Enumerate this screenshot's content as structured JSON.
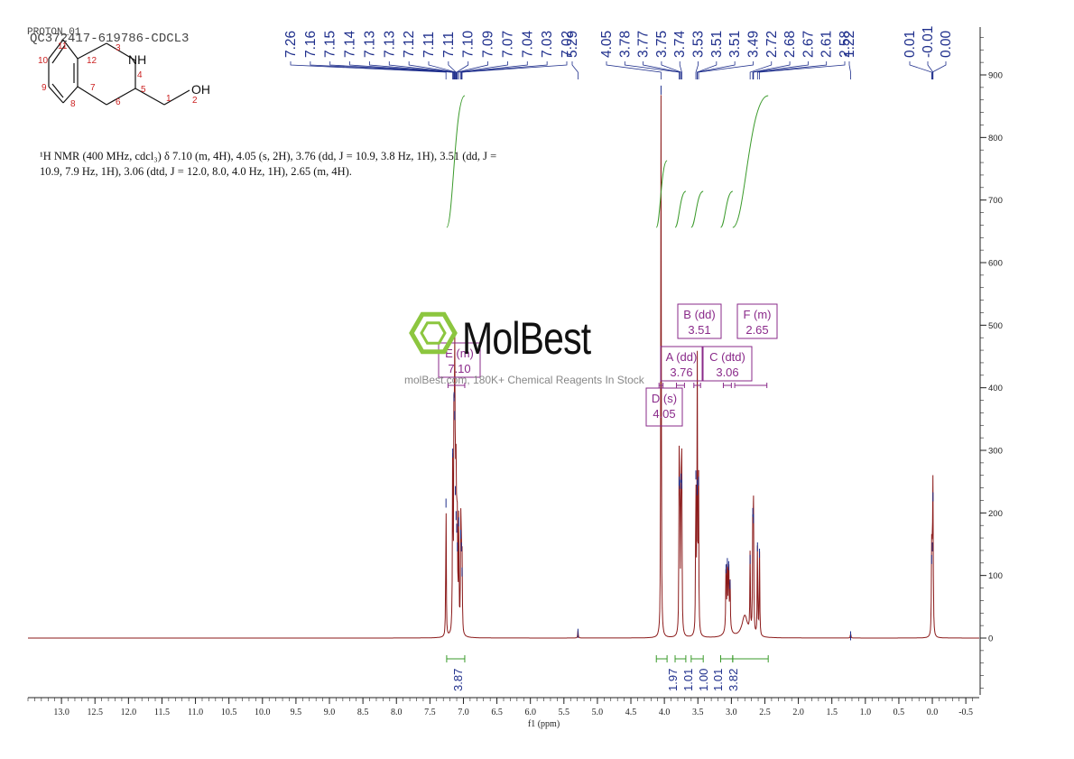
{
  "header": {
    "experiment": "PROTON_01",
    "sample": "QC372417-619786-CDCL3"
  },
  "description": {
    "line1": "¹H NMR (400 MHz, cdcl₃) δ 7.10 (m, 4H), 4.05 (s, 2H), 3.76 (dd, J = 10.9, 3.8 Hz, 1H), 3.51 (dd, J =",
    "line2": "10.9, 7.9 Hz, 1H), 3.06 (dtd, J = 12.0, 8.0, 4.0 Hz, 1H), 2.65 (m, 4H)."
  },
  "watermark": {
    "name": "MolBest",
    "tagline": "molBest.com, 180K+ Chemical Reagents In Stock"
  },
  "structure": {
    "labels": [
      "NH",
      "OH",
      "1",
      "2",
      "3",
      "4",
      "5",
      "6",
      "7",
      "8",
      "9",
      "10",
      "11",
      "12"
    ]
  },
  "colors": {
    "spectrum": "#8b1a1a",
    "peak_labels": "#1f2f8c",
    "integral": "#3a9a2a",
    "multiplet": "#8a2a8a",
    "axis": "#222222"
  },
  "chart_data": {
    "type": "line",
    "title": "",
    "xlabel": "f1 (ppm)",
    "ylabel": "",
    "x_reversed": true,
    "xlim": [
      13.5,
      -0.7
    ],
    "ylim": [
      -90,
      980
    ],
    "x_ticks": [
      13.0,
      12.5,
      12.0,
      11.5,
      11.0,
      10.5,
      10.0,
      9.5,
      9.0,
      8.5,
      8.0,
      7.5,
      7.0,
      6.5,
      6.0,
      5.5,
      5.0,
      4.5,
      4.0,
      3.5,
      3.0,
      2.5,
      2.0,
      1.5,
      1.0,
      0.5,
      0.0,
      -0.5
    ],
    "x_tick_labels": [
      "13.0",
      "12.5",
      "12.0",
      "11.5",
      "11.0",
      "10.5",
      "10.0",
      "9.5",
      "9.0",
      "8.5",
      "8.0",
      "7.5",
      "7.0",
      "6.5",
      "6.0",
      "5.5",
      "5.0",
      "4.5",
      "4.0",
      "3.5",
      "3.0",
      "2.5",
      "2.0",
      "1.5",
      "1.0",
      "0.5",
      "0.0",
      "-0.5"
    ],
    "y_ticks": [
      900,
      800,
      700,
      600,
      500,
      400,
      300,
      200,
      100,
      0
    ],
    "y_tick_labels": [
      "900",
      "800",
      "700",
      "600",
      "500",
      "400",
      "300",
      "200",
      "100",
      "0"
    ],
    "peaks": [
      {
        "ppm": 7.26,
        "height": 220
      },
      {
        "ppm": 7.16,
        "height": 300
      },
      {
        "ppm": 7.14,
        "height": 390
      },
      {
        "ppm": 7.13,
        "height": 360
      },
      {
        "ppm": 7.12,
        "height": 240
      },
      {
        "ppm": 7.11,
        "height": 200
      },
      {
        "ppm": 7.1,
        "height": 180
      },
      {
        "ppm": 7.09,
        "height": 150
      },
      {
        "ppm": 7.07,
        "height": 190
      },
      {
        "ppm": 7.04,
        "height": 170
      },
      {
        "ppm": 7.03,
        "height": 150
      },
      {
        "ppm": 7.02,
        "height": 110
      },
      {
        "ppm": 5.29,
        "height": 12
      },
      {
        "ppm": 4.05,
        "height": 880
      },
      {
        "ppm": 3.78,
        "height": 255
      },
      {
        "ppm": 3.77,
        "height": 250
      },
      {
        "ppm": 3.75,
        "height": 260
      },
      {
        "ppm": 3.74,
        "height": 250
      },
      {
        "ppm": 3.53,
        "height": 265
      },
      {
        "ppm": 3.51,
        "height": 250
      },
      {
        "ppm": 3.51,
        "height": 240
      },
      {
        "ppm": 3.49,
        "height": 255
      },
      {
        "ppm": 3.08,
        "height": 115
      },
      {
        "ppm": 3.06,
        "height": 125
      },
      {
        "ppm": 3.04,
        "height": 120
      },
      {
        "ppm": 3.02,
        "height": 90
      },
      {
        "ppm": 2.72,
        "height": 130
      },
      {
        "ppm": 2.68,
        "height": 205
      },
      {
        "ppm": 2.67,
        "height": 195
      },
      {
        "ppm": 2.61,
        "height": 150
      },
      {
        "ppm": 2.58,
        "height": 140
      },
      {
        "ppm": 1.22,
        "height": 8
      },
      {
        "ppm": 0.01,
        "height": 130
      },
      {
        "ppm": -0.01,
        "height": 230
      },
      {
        "ppm": 0.0,
        "height": 150
      }
    ],
    "peak_labels": [
      "7.26",
      "7.16",
      "7.15",
      "7.14",
      "7.13",
      "7.13",
      "7.12",
      "7.11",
      "7.11",
      "7.10",
      "7.09",
      "7.07",
      "7.04",
      "7.03",
      "7.02",
      "5.29",
      "4.05",
      "3.78",
      "3.77",
      "3.75",
      "3.74",
      "3.53",
      "3.51",
      "3.51",
      "3.49",
      "2.72",
      "2.68",
      "2.67",
      "2.61",
      "2.58",
      "1.22",
      "0.01",
      "-0.01",
      "0.00"
    ],
    "peak_label_ppm": [
      7.26,
      7.16,
      7.15,
      7.14,
      7.13,
      7.13,
      7.12,
      7.11,
      7.11,
      7.1,
      7.09,
      7.07,
      7.04,
      7.03,
      7.02,
      5.29,
      4.05,
      3.78,
      3.77,
      3.75,
      3.74,
      3.53,
      3.51,
      3.51,
      3.49,
      2.72,
      2.68,
      2.67,
      2.61,
      2.58,
      1.22,
      0.01,
      -0.01,
      0.0
    ],
    "multiplets": [
      {
        "letter": "E",
        "type": "m",
        "ppm": "7.10",
        "range": [
          7.23,
          6.98
        ]
      },
      {
        "letter": "D",
        "type": "s",
        "ppm": "4.05",
        "range": [
          4.08,
          4.02
        ]
      },
      {
        "letter": "A",
        "type": "dd",
        "ppm": "3.76",
        "range": [
          3.82,
          3.7
        ]
      },
      {
        "letter": "B",
        "type": "dd",
        "ppm": "3.51",
        "range": [
          3.56,
          3.46
        ]
      },
      {
        "letter": "C",
        "type": "dtd",
        "ppm": "3.06",
        "range": [
          3.12,
          3.0
        ]
      },
      {
        "letter": "F",
        "type": "m",
        "ppm": "2.65",
        "range": [
          2.95,
          2.47
        ]
      }
    ],
    "integrals": [
      {
        "value": "3.87",
        "from": 7.25,
        "to": 6.98
      },
      {
        "value": "1.97",
        "from": 4.12,
        "to": 3.96
      },
      {
        "value": "1.01",
        "from": 3.84,
        "to": 3.68
      },
      {
        "value": "1.00",
        "from": 3.6,
        "to": 3.42
      },
      {
        "value": "1.01",
        "from": 3.16,
        "to": 2.98
      },
      {
        "value": "3.82",
        "from": 2.98,
        "to": 2.45
      }
    ]
  }
}
